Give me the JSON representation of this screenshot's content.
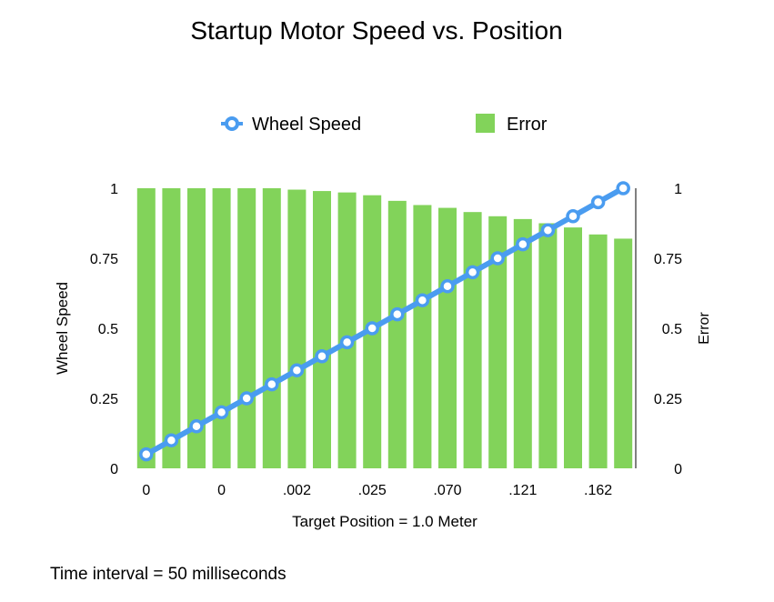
{
  "chart_data": {
    "type": "bar+line",
    "title": "Startup Motor Speed vs. Position",
    "xlabel": "Target Position = 1.0 Meter",
    "ylabel": "Wheel Speed",
    "y2label": "Error",
    "ylim": [
      0,
      1
    ],
    "y2lim": [
      0,
      1
    ],
    "yticks": [
      "0",
      "0.25",
      "0.5",
      "0.75",
      "1"
    ],
    "y2ticks": [
      "0",
      "0.25",
      "0.5",
      "0.75",
      "1"
    ],
    "x_tick_labels": [
      "0",
      "0",
      ".002",
      ".025",
      ".070",
      ".121",
      ".162"
    ],
    "grid": false,
    "legend_position": "top",
    "series": [
      {
        "name": "Wheel Speed",
        "kind": "line",
        "axis": "left",
        "color": "#4a9cf0",
        "values": [
          0.05,
          0.1,
          0.15,
          0.2,
          0.25,
          0.3,
          0.35,
          0.4,
          0.45,
          0.5,
          0.55,
          0.6,
          0.65,
          0.7,
          0.75,
          0.8,
          0.85,
          0.9,
          0.95,
          1.0
        ]
      },
      {
        "name": "Error",
        "kind": "bar",
        "axis": "right",
        "color": "#82d35a",
        "values": [
          1.0,
          1.0,
          1.0,
          1.0,
          1.0,
          1.0,
          0.995,
          0.99,
          0.985,
          0.975,
          0.955,
          0.94,
          0.93,
          0.915,
          0.9,
          0.89,
          0.875,
          0.86,
          0.835,
          0.82
        ]
      }
    ]
  },
  "footnote": "Time interval = 50 milliseconds"
}
